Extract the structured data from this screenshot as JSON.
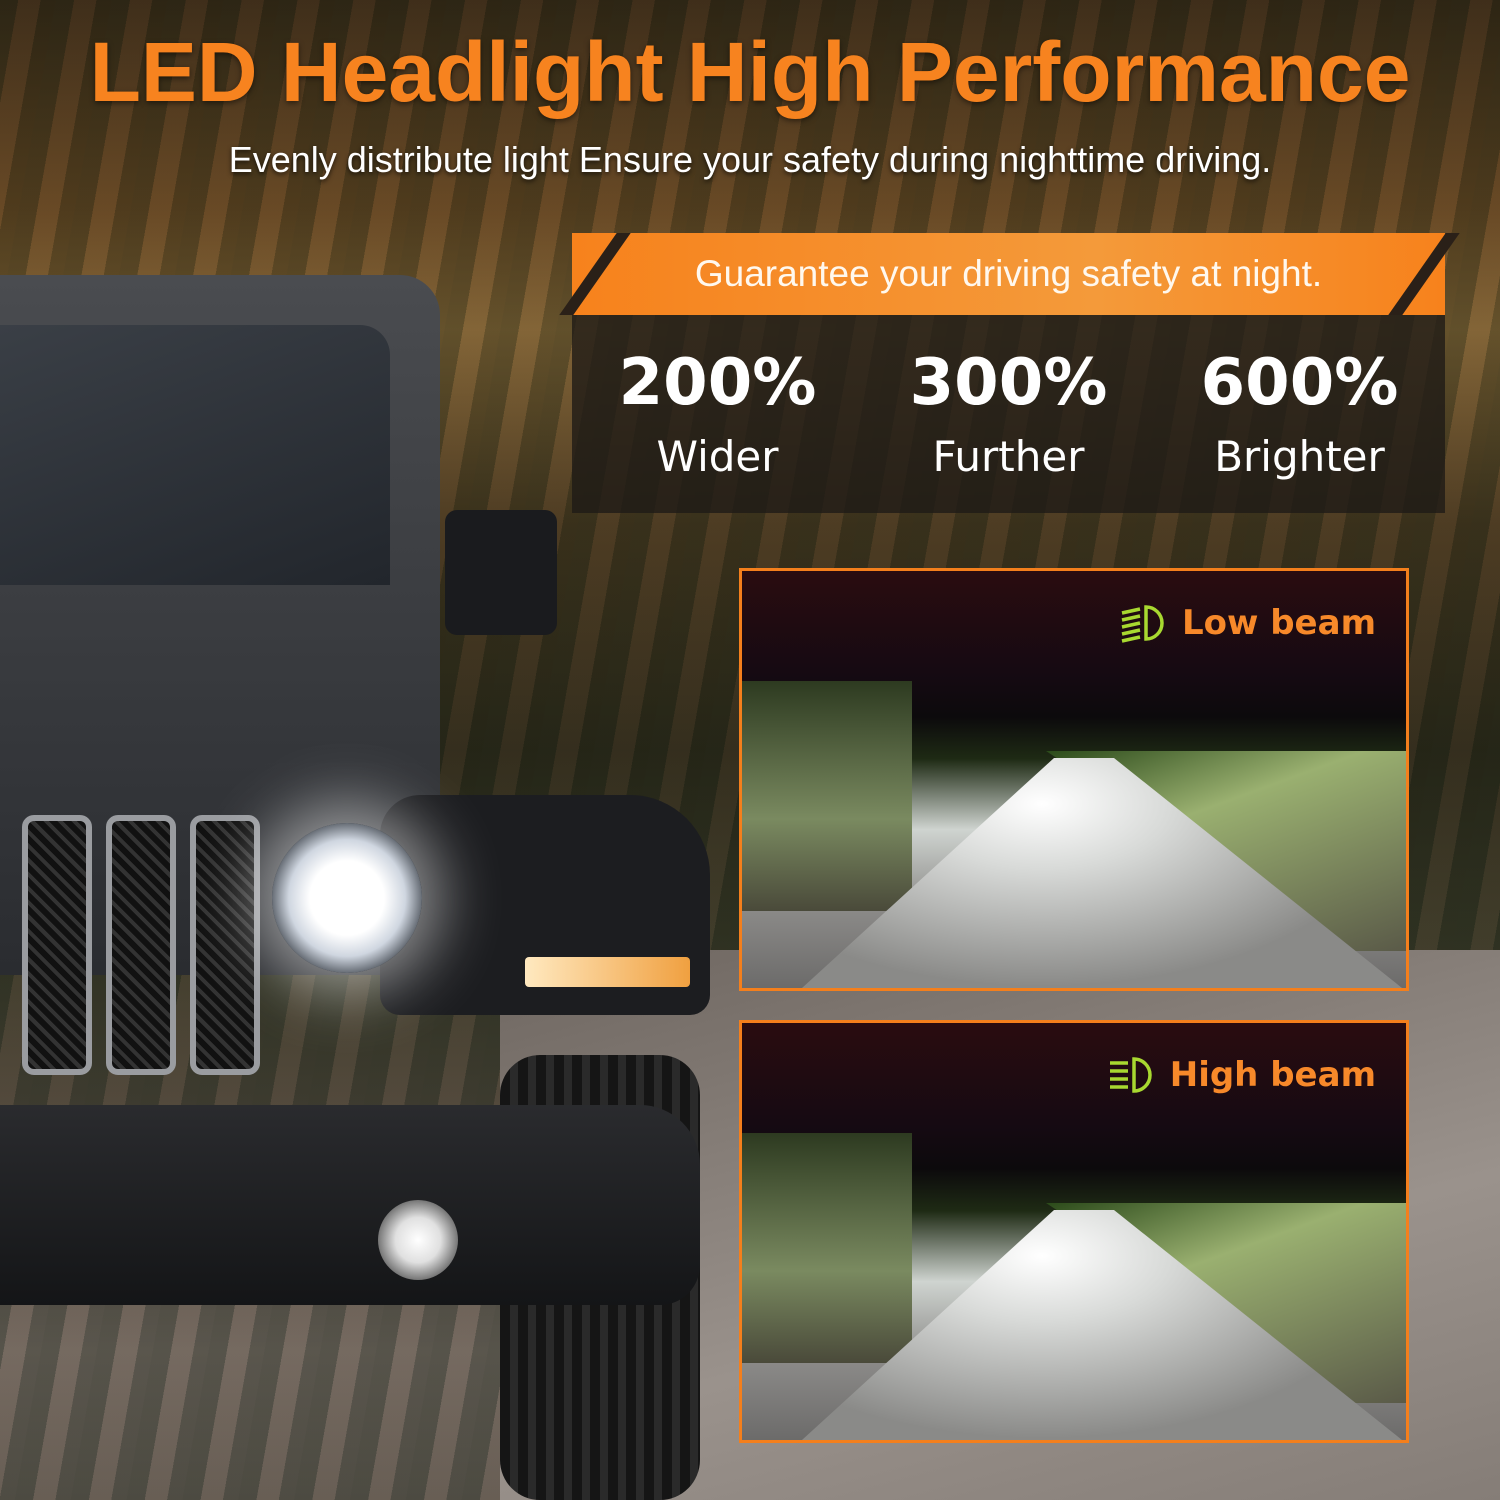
{
  "header": {
    "title": "LED Headlight High Performance",
    "subtitle": "Evenly distribute light Ensure your safety during nighttime driving."
  },
  "banner": {
    "text": "Guarantee your driving safety at night."
  },
  "stats": [
    {
      "value": "200%",
      "label": "Wider"
    },
    {
      "value": "300%",
      "label": "Further"
    },
    {
      "value": "600%",
      "label": "Brighter"
    }
  ],
  "panels": [
    {
      "label": "Low beam",
      "icon": "low-beam-icon"
    },
    {
      "label": "High beam",
      "icon": "high-beam-icon"
    }
  ],
  "colors": {
    "accent": "#f7831f",
    "icon": "#a8d830",
    "panel_border": "#f47f1c"
  }
}
